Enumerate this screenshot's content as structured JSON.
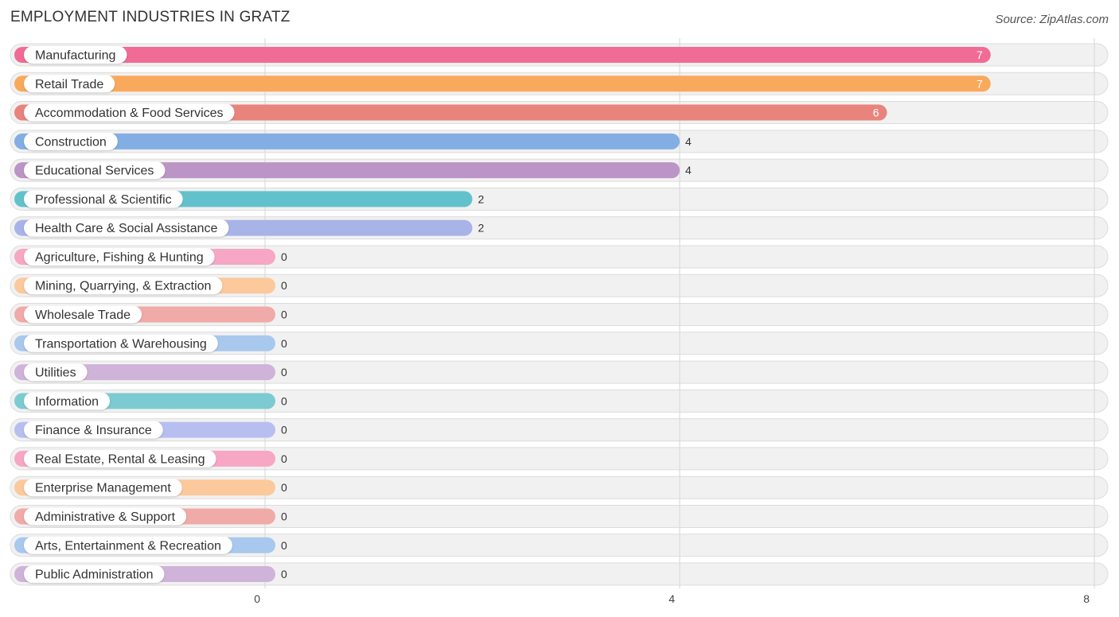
{
  "header": {
    "title": "EMPLOYMENT INDUSTRIES IN GRATZ",
    "source": "Source: ZipAtlas.com"
  },
  "chart_data": {
    "type": "bar",
    "orientation": "horizontal",
    "title": "EMPLOYMENT INDUSTRIES IN GRATZ",
    "xlim": [
      0,
      8
    ],
    "ticks": [
      0,
      4,
      8
    ],
    "grid": true,
    "categories": [
      "Manufacturing",
      "Retail Trade",
      "Accommodation & Food Services",
      "Construction",
      "Educational Services",
      "Professional & Scientific",
      "Health Care & Social Assistance",
      "Agriculture, Fishing & Hunting",
      "Mining, Quarrying, & Extraction",
      "Wholesale Trade",
      "Transportation & Warehousing",
      "Utilities",
      "Information",
      "Finance & Insurance",
      "Real Estate, Rental & Leasing",
      "Enterprise Management",
      "Administrative & Support",
      "Arts, Entertainment & Recreation",
      "Public Administration"
    ],
    "values": [
      7,
      7,
      6,
      4,
      4,
      2,
      2,
      0,
      0,
      0,
      0,
      0,
      0,
      0,
      0,
      0,
      0,
      0,
      0
    ],
    "colors": [
      "#f06b96",
      "#f9a95c",
      "#e8847c",
      "#82aee3",
      "#bb95c5",
      "#62c2cb",
      "#a8b3e8",
      "#f7a6c3",
      "#fbc99c",
      "#f0aaa8",
      "#a9c8ee",
      "#d0b3d8",
      "#7ccbd2",
      "#b6bff0",
      "#f7a6c3",
      "#fbc99c",
      "#f0aaa8",
      "#a9c8ee",
      "#d0b3d8"
    ]
  }
}
